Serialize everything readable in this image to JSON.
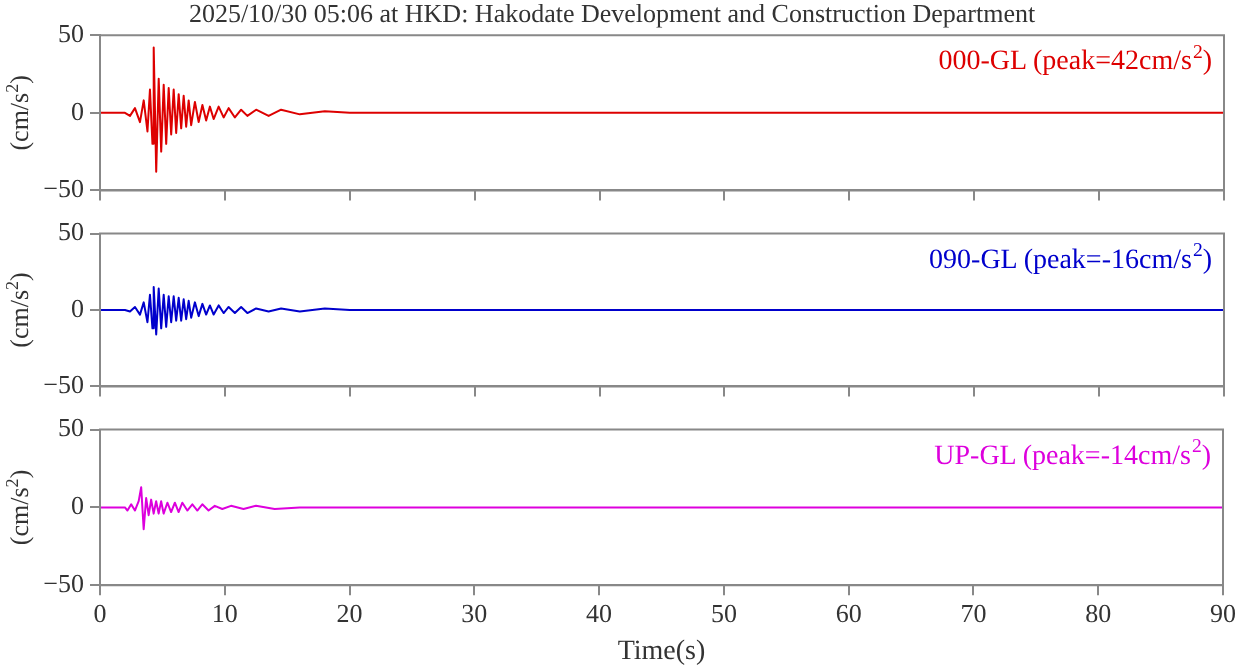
{
  "chart_data": [
    {
      "type": "line",
      "title": "2025/10/30 05:06 at HKD: Hakodate Development and Construction Department",
      "ylabel": "(cm/s$^{2}$)",
      "xlim": [
        0,
        90
      ],
      "xticks": [
        0,
        10,
        20,
        30,
        40,
        50,
        60,
        70,
        80,
        90
      ],
      "ylim": [
        -50,
        50
      ],
      "yticks": [
        -50,
        0,
        50
      ],
      "grid": false,
      "tick_labels": "y",
      "series": [
        {
          "name": "000-GL (peak=42cm/s$^{2}$)",
          "color": "#dd0000",
          "x": [
            0,
            2,
            2.4,
            2.8,
            3.2,
            3.5,
            3.8,
            4.0,
            4.2,
            4.3,
            4.5,
            4.7,
            4.9,
            5.1,
            5.3,
            5.5,
            5.7,
            5.9,
            6.1,
            6.3,
            6.5,
            6.7,
            6.9,
            7.1,
            7.3,
            7.6,
            7.9,
            8.2,
            8.5,
            8.8,
            9.1,
            9.5,
            9.9,
            10.3,
            10.8,
            11.3,
            11.8,
            12.5,
            13.5,
            14.5,
            16,
            18,
            20,
            90
          ],
          "values": [
            0,
            0,
            -2,
            3,
            -6,
            8,
            -12,
            15,
            -20,
            42,
            -38,
            22,
            -25,
            18,
            -20,
            16,
            -14,
            15,
            -13,
            12,
            -10,
            11,
            -9,
            8,
            -8,
            7,
            -6,
            5,
            -5,
            4,
            -4,
            4,
            -3,
            3,
            -3,
            2,
            -2,
            2,
            -2,
            2,
            -1,
            1,
            0,
            0
          ]
        }
      ]
    },
    {
      "type": "line",
      "ylabel": "(cm/s$^{2}$)",
      "xlim": [
        0,
        90
      ],
      "xticks": [
        0,
        10,
        20,
        30,
        40,
        50,
        60,
        70,
        80,
        90
      ],
      "ylim": [
        -50,
        50
      ],
      "yticks": [
        -50,
        0,
        50
      ],
      "grid": false,
      "tick_labels": "y",
      "series": [
        {
          "name": "090-GL (peak=-16cm/s$^{2}$)",
          "color": "#0000cc",
          "x": [
            0,
            2,
            2.4,
            2.8,
            3.2,
            3.5,
            3.8,
            4.0,
            4.2,
            4.3,
            4.5,
            4.7,
            4.9,
            5.1,
            5.3,
            5.5,
            5.7,
            5.9,
            6.1,
            6.3,
            6.5,
            6.7,
            6.9,
            7.1,
            7.3,
            7.6,
            7.9,
            8.2,
            8.5,
            8.8,
            9.1,
            9.5,
            9.9,
            10.3,
            10.8,
            11.3,
            11.8,
            12.5,
            13.5,
            14.5,
            16,
            18,
            20,
            90
          ],
          "values": [
            0,
            0,
            -1,
            2,
            -3,
            5,
            -8,
            10,
            -12,
            15,
            -16,
            14,
            -12,
            10,
            -11,
            9,
            -8,
            9,
            -7,
            8,
            -7,
            7,
            -6,
            6,
            -5,
            5,
            -4,
            4,
            -3,
            3,
            -3,
            3,
            -2,
            2,
            -2,
            2,
            -2,
            1,
            -1,
            1,
            -1,
            1,
            0,
            0
          ]
        }
      ]
    },
    {
      "type": "line",
      "ylabel": "(cm/s$^{2}$)",
      "xlabel": "Time(s)",
      "xlim": [
        0,
        90
      ],
      "xticks": [
        0,
        10,
        20,
        30,
        40,
        50,
        60,
        70,
        80,
        90
      ],
      "ylim": [
        -50,
        50
      ],
      "yticks": [
        -50,
        0,
        50
      ],
      "grid": false,
      "series": [
        {
          "name": "UP-GL (peak=-14cm/s$^{2}$)",
          "color": "#dd00dd",
          "x": [
            0,
            2.0,
            2.2,
            2.5,
            2.8,
            3.1,
            3.3,
            3.5,
            3.7,
            3.9,
            4.1,
            4.3,
            4.5,
            4.7,
            4.9,
            5.1,
            5.4,
            5.7,
            6.0,
            6.3,
            6.6,
            7.0,
            7.4,
            7.8,
            8.2,
            8.7,
            9.2,
            9.8,
            10.5,
            11.5,
            12.5,
            14,
            16,
            18,
            20,
            90
          ],
          "values": [
            0,
            0,
            -2,
            2,
            -2,
            4,
            13,
            -14,
            6,
            -5,
            5,
            -4,
            4,
            -4,
            4,
            -4,
            3,
            -3,
            3,
            -3,
            3,
            -2,
            2,
            -2,
            2,
            -2,
            1,
            -1,
            1,
            -1,
            1,
            -1,
            0,
            0,
            0,
            0
          ]
        }
      ]
    }
  ]
}
